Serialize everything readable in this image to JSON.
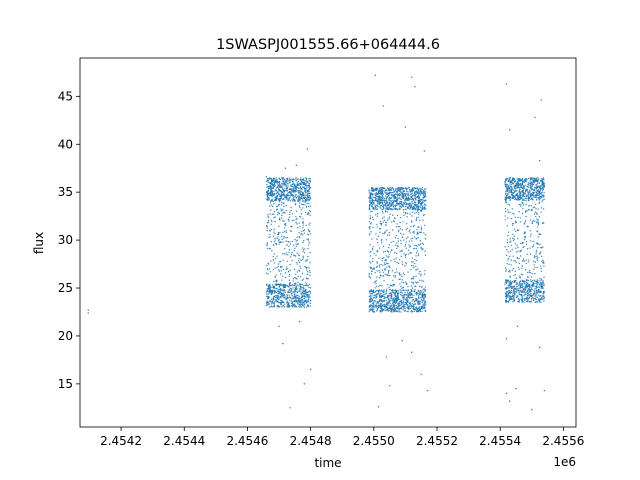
{
  "chart_data": {
    "type": "scatter",
    "title": "1SWASPJ001555.66+064444.6",
    "xlabel": "time",
    "ylabel": "flux",
    "x_offset_label": "1e6",
    "xlim": [
      2454070,
      2455640
    ],
    "ylim": [
      10.5,
      49
    ],
    "x_ticks": [
      2454200,
      2454400,
      2454600,
      2454800,
      2455000,
      2455200,
      2455400,
      2455600
    ],
    "x_tick_labels": [
      "2.4542",
      "2.4544",
      "2.4546",
      "2.4548",
      "2.4550",
      "2.4552",
      "2.4554",
      "2.4556"
    ],
    "y_ticks": [
      15,
      20,
      25,
      30,
      35,
      40,
      45
    ],
    "y_tick_labels": [
      "15",
      "20",
      "25",
      "30",
      "35",
      "40",
      "45"
    ],
    "grid": false,
    "legend": "none",
    "point_color": "#1f77b4",
    "series": [
      {
        "points": [
          [
            2454096,
            22.7
          ],
          [
            2454096,
            22.4
          ],
          [
            2454660,
            36.6
          ],
          [
            2454670,
            25.0
          ],
          [
            2454680,
            33.5
          ],
          [
            2454690,
            24.2
          ],
          [
            2454700,
            29.8
          ],
          [
            2454710,
            23.5
          ],
          [
            2454720,
            35.8
          ],
          [
            2454730,
            26.7
          ],
          [
            2454740,
            31.4
          ],
          [
            2454750,
            24.8
          ],
          [
            2454760,
            34.6
          ],
          [
            2454770,
            27.9
          ],
          [
            2454780,
            23.9
          ],
          [
            2454790,
            32.7
          ],
          [
            2454700,
            21.0
          ],
          [
            2454712,
            19.2
          ],
          [
            2454755,
            37.8
          ],
          [
            2454790,
            39.5
          ],
          [
            2454800,
            16.5
          ],
          [
            2454735,
            12.5
          ],
          [
            2454780,
            15.0
          ],
          [
            2454720,
            37.5
          ],
          [
            2454765,
            21.5
          ],
          [
            2454985,
            35.2
          ],
          [
            2454995,
            24.6
          ],
          [
            2455010,
            30.1
          ],
          [
            2455020,
            23.2
          ],
          [
            2455035,
            34.1
          ],
          [
            2455050,
            26.3
          ],
          [
            2455060,
            32.6
          ],
          [
            2455075,
            24.0
          ],
          [
            2455090,
            35.0
          ],
          [
            2455100,
            28.4
          ],
          [
            2455110,
            22.9
          ],
          [
            2455125,
            33.3
          ],
          [
            2455140,
            25.6
          ],
          [
            2455150,
            30.8
          ],
          [
            2455160,
            24.3
          ],
          [
            2455005,
            47.2
          ],
          [
            2455030,
            44.0
          ],
          [
            2455120,
            47.0
          ],
          [
            2455130,
            46.0
          ],
          [
            2455100,
            41.8
          ],
          [
            2455160,
            39.3
          ],
          [
            2455040,
            17.8
          ],
          [
            2455050,
            14.8
          ],
          [
            2455150,
            16.0
          ],
          [
            2455170,
            14.3
          ],
          [
            2455015,
            12.6
          ],
          [
            2455090,
            19.5
          ],
          [
            2455120,
            18.3
          ],
          [
            2455420,
            33.9
          ],
          [
            2455430,
            25.4
          ],
          [
            2455440,
            30.2
          ],
          [
            2455450,
            24.6
          ],
          [
            2455460,
            35.1
          ],
          [
            2455470,
            27.3
          ],
          [
            2455480,
            32.0
          ],
          [
            2455490,
            23.9
          ],
          [
            2455500,
            34.7
          ],
          [
            2455510,
            26.5
          ],
          [
            2455520,
            36.2
          ],
          [
            2455530,
            25.0
          ],
          [
            2455535,
            31.8
          ],
          [
            2455420,
            46.3
          ],
          [
            2455430,
            41.5
          ],
          [
            2455510,
            42.8
          ],
          [
            2455530,
            44.6
          ],
          [
            2455525,
            38.3
          ],
          [
            2455420,
            14.0
          ],
          [
            2455430,
            13.2
          ],
          [
            2455450,
            14.5
          ],
          [
            2455500,
            12.3
          ],
          [
            2455540,
            14.3
          ],
          [
            2455525,
            18.8
          ],
          [
            2455420,
            19.7
          ],
          [
            2455455,
            21.0
          ]
        ]
      }
    ],
    "dense_clusters": [
      {
        "x_range": [
          2454660,
          2454800
        ],
        "y_range": [
          23,
          36.5
        ],
        "count": 1500
      },
      {
        "x_range": [
          2454985,
          2455165
        ],
        "y_range": [
          22.5,
          35.5
        ],
        "count": 1900
      },
      {
        "x_range": [
          2455415,
          2455540
        ],
        "y_range": [
          23.5,
          36.5
        ],
        "count": 1300
      }
    ]
  }
}
